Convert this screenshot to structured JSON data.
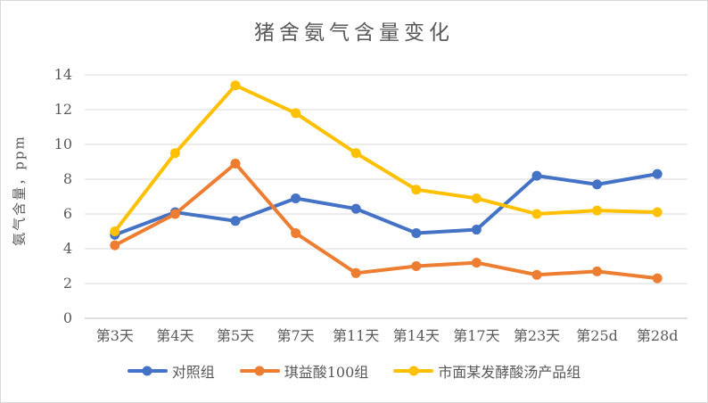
{
  "chart_data": {
    "type": "line",
    "title": "猪舍氨气含量变化",
    "xlabel": "",
    "ylabel": "氨气含量，ppm",
    "categories": [
      "第3天",
      "第4天",
      "第5天",
      "第7天",
      "第11天",
      "第14天",
      "第17天",
      "第23天",
      "第25d",
      "第28d"
    ],
    "series": [
      {
        "name": "对照组",
        "color": "#4472C4",
        "values": [
          4.8,
          6.1,
          5.6,
          6.9,
          6.3,
          4.9,
          5.1,
          8.2,
          7.7,
          8.3
        ]
      },
      {
        "name": "琪益酸100组",
        "color": "#ED7D31",
        "values": [
          4.2,
          6.0,
          8.9,
          4.9,
          2.6,
          3.0,
          3.2,
          2.5,
          2.7,
          2.3
        ]
      },
      {
        "name": "市面某发酵酸汤产品组",
        "color": "#FFC000",
        "values": [
          5.0,
          9.5,
          13.4,
          11.8,
          9.5,
          7.4,
          6.9,
          6.0,
          6.2,
          6.1
        ]
      }
    ],
    "ylim": [
      0,
      14
    ],
    "ytick_step": 2,
    "grid": true,
    "legend_position": "bottom",
    "colors": {
      "text": "#595959",
      "gridline": "#d9d9d9",
      "axis": "#bfbfbf",
      "border": "#d9d9d9",
      "background": "#ffffff"
    }
  }
}
